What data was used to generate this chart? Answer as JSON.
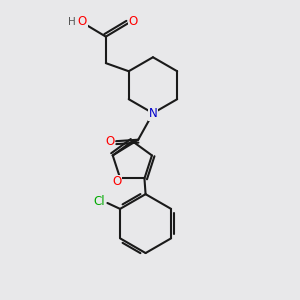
{
  "bg_color": "#e8e8ea",
  "bond_color": "#1a1a1a",
  "bond_width": 1.5,
  "atom_colors": {
    "O": "#ff0000",
    "N": "#0000cc",
    "Cl": "#00aa00",
    "H": "#555555",
    "C": "#1a1a1a"
  },
  "font_size": 8.5,
  "fig_size": [
    3.0,
    3.0
  ],
  "dpi": 100
}
